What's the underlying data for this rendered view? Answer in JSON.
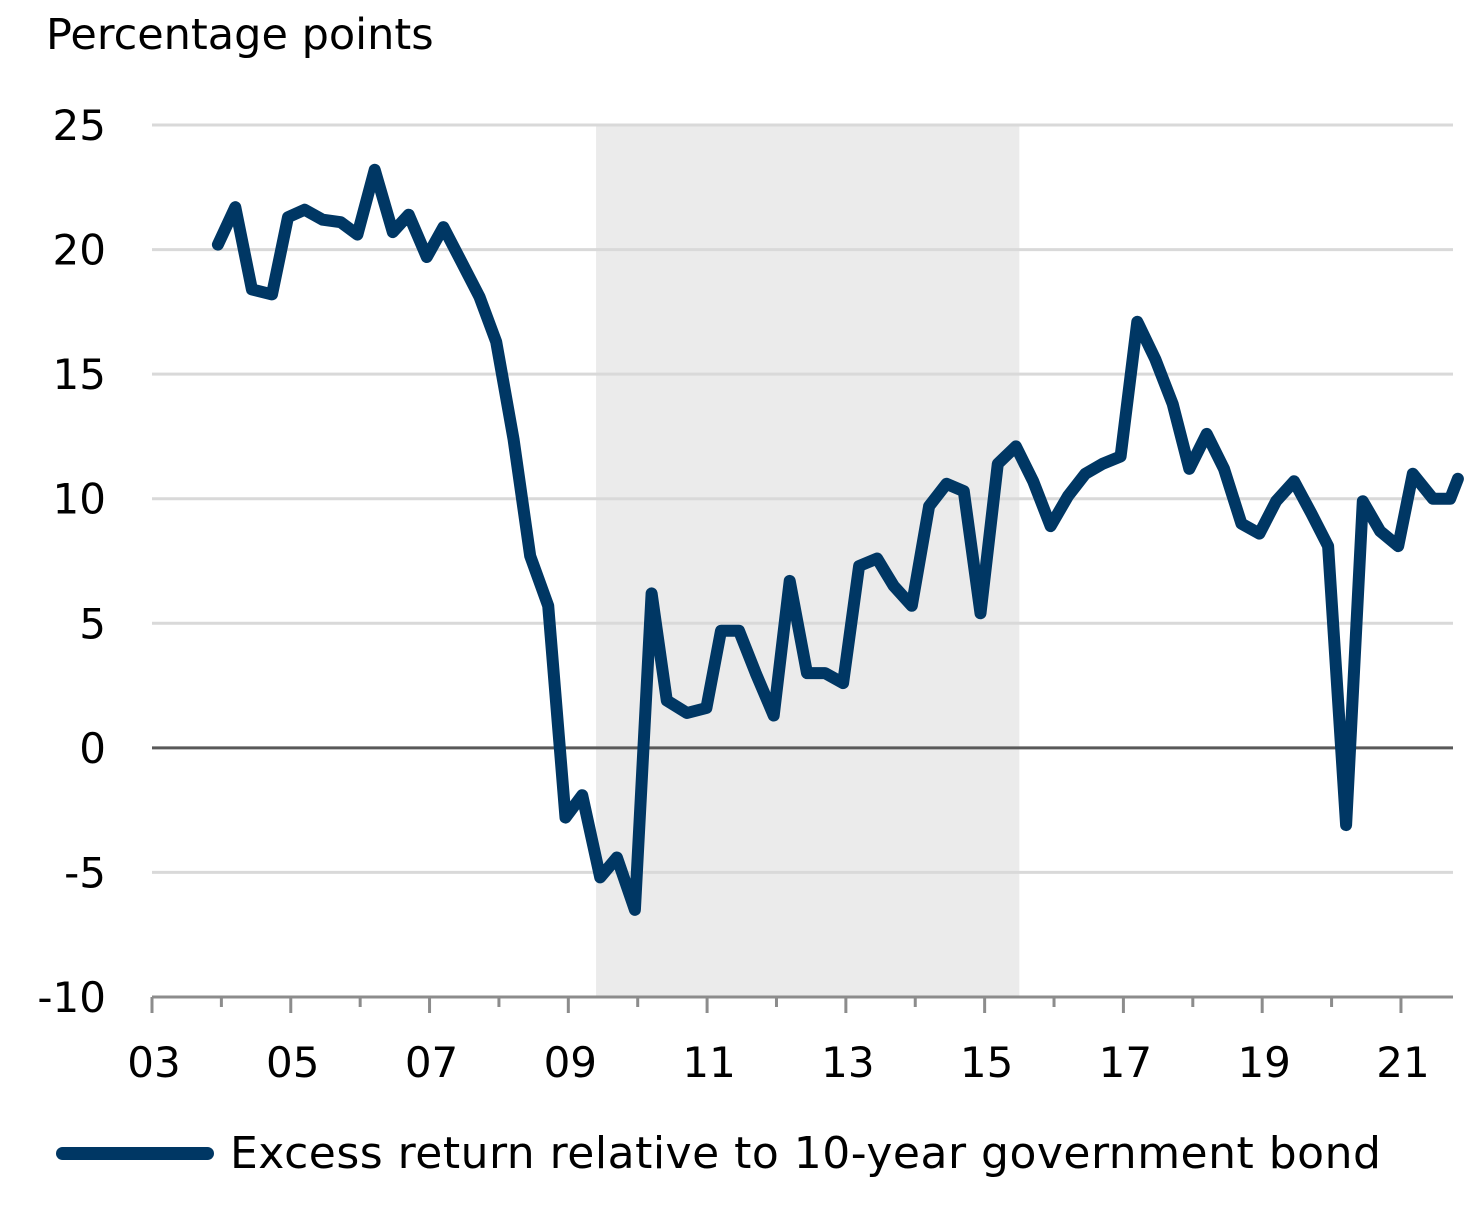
{
  "chart_data": {
    "type": "line",
    "ylabel": "Percentage points",
    "ylim": [
      -10,
      25
    ],
    "yticks": [
      25,
      20,
      15,
      10,
      5,
      0,
      -5,
      -10
    ],
    "ytick_labels": [
      "25",
      "20",
      "15",
      "10",
      "5",
      "0",
      "-5",
      "-10"
    ],
    "xlim": [
      2003,
      2021.75
    ],
    "xticks": [
      2003,
      2005,
      2007,
      2009,
      2011,
      2013,
      2015,
      2017,
      2019,
      2021
    ],
    "xtick_labels": [
      "03",
      "05",
      "07",
      "09",
      "11",
      "13",
      "15",
      "17",
      "19",
      "21"
    ],
    "grid": true,
    "shaded_period": [
      2009.4,
      2015.5
    ],
    "legend_position": "bottom",
    "colors": {
      "line": "#003764",
      "grid": "#d9d9d9",
      "zero_line": "#595959",
      "shade": "#ebebeb"
    },
    "series": [
      {
        "name": "Excess return relative to 10-year government bond",
        "x": [
          2003.95,
          2004.2,
          2004.44,
          2004.73,
          2004.96,
          2005.2,
          2005.46,
          2005.72,
          2005.96,
          2006.21,
          2006.47,
          2006.7,
          2006.96,
          2007.2,
          2007.46,
          2007.72,
          2007.96,
          2008.21,
          2008.45,
          2008.71,
          2008.96,
          2009.2,
          2009.46,
          2009.7,
          2009.96,
          2010.2,
          2010.42,
          2010.71,
          2010.99,
          2011.2,
          2011.46,
          2011.7,
          2011.96,
          2012.19,
          2012.44,
          2012.7,
          2012.96,
          2013.19,
          2013.45,
          2013.69,
          2013.95,
          2014.2,
          2014.45,
          2014.7,
          2014.94,
          2015.19,
          2015.45,
          2015.7,
          2015.95,
          2016.2,
          2016.45,
          2016.7,
          2016.96,
          2017.2,
          2017.46,
          2017.71,
          2017.95,
          2018.2,
          2018.45,
          2018.7,
          2018.96,
          2019.2,
          2019.46,
          2019.71,
          2019.95,
          2020.21,
          2020.45,
          2020.7,
          2020.96,
          2021.17,
          2021.46,
          2021.71,
          2021.82
        ],
        "y": [
          20.2,
          21.7,
          18.4,
          18.2,
          21.3,
          21.6,
          21.2,
          21.1,
          20.6,
          23.2,
          20.7,
          21.4,
          19.7,
          20.9,
          19.5,
          18.1,
          16.3,
          12.4,
          7.7,
          5.7,
          -2.8,
          -1.9,
          -5.2,
          -4.4,
          -6.5,
          6.2,
          1.9,
          1.4,
          1.6,
          4.7,
          4.7,
          3.0,
          1.3,
          6.7,
          3.0,
          3.0,
          2.6,
          7.3,
          7.6,
          6.5,
          5.7,
          9.7,
          10.6,
          10.3,
          5.4,
          11.4,
          12.1,
          10.7,
          8.9,
          10.1,
          11.0,
          11.4,
          11.7,
          17.1,
          15.6,
          13.8,
          11.2,
          12.6,
          11.2,
          9.0,
          8.6,
          9.9,
          10.7,
          9.4,
          8.1,
          -3.1,
          9.9,
          8.7,
          8.1,
          11.0,
          10.0,
          10.0,
          10.8
        ]
      }
    ]
  }
}
